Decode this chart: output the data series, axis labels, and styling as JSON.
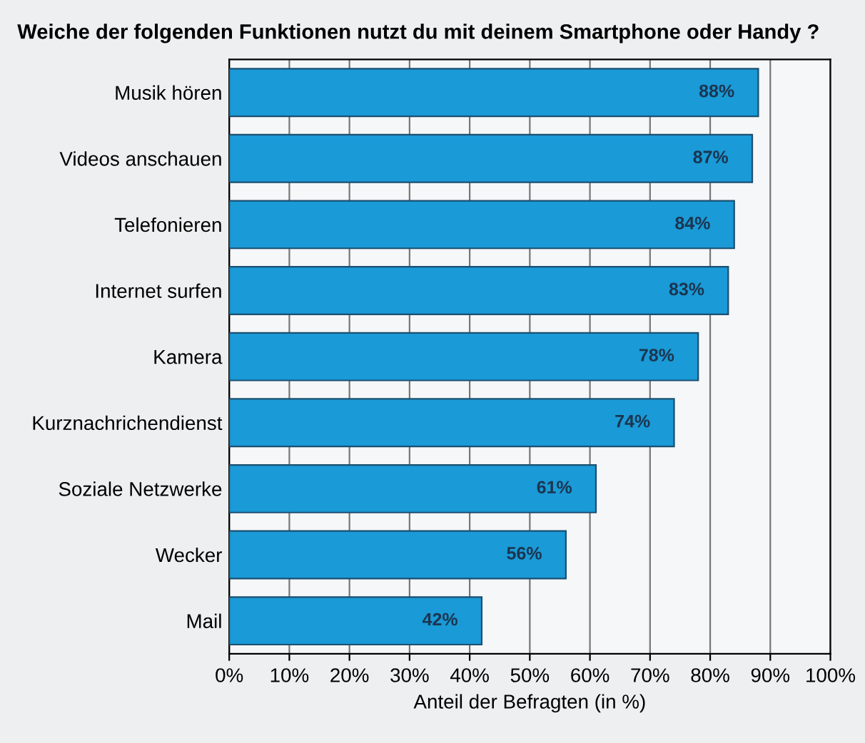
{
  "chart_data": {
    "type": "bar",
    "orientation": "horizontal",
    "title": "Weiche der folgenden Funktionen nutzt du mit deinem Smartphone oder Handy ?",
    "xlabel": "Anteil der Befragten (in %)",
    "categories": [
      "Musik hören",
      "Videos anschauen",
      "Telefonieren",
      "Internet surfen",
      "Kamera",
      "Kurznachrichendienst",
      "Soziale Netzwerke",
      "Wecker",
      "Mail"
    ],
    "values": [
      88,
      87,
      84,
      83,
      78,
      74,
      61,
      56,
      42
    ],
    "value_labels": [
      "88%",
      "87%",
      "84%",
      "83%",
      "78%",
      "74%",
      "61%",
      "56%",
      "42%"
    ],
    "color": "#1a9ad6",
    "xlim": [
      0,
      100
    ],
    "xticks": [
      {
        "value": 0,
        "label": "0%"
      },
      {
        "value": 10,
        "label": "10%"
      },
      {
        "value": 20,
        "label": "20%"
      },
      {
        "value": 30,
        "label": "30%"
      },
      {
        "value": 40,
        "label": "40%"
      },
      {
        "value": 50,
        "label": "50%"
      },
      {
        "value": 60,
        "label": "60%"
      },
      {
        "value": 70,
        "label": "70%"
      },
      {
        "value": 80,
        "label": "80%"
      },
      {
        "value": 90,
        "label": "90%"
      },
      {
        "value": 100,
        "label": "100%"
      }
    ],
    "grid": "x"
  }
}
